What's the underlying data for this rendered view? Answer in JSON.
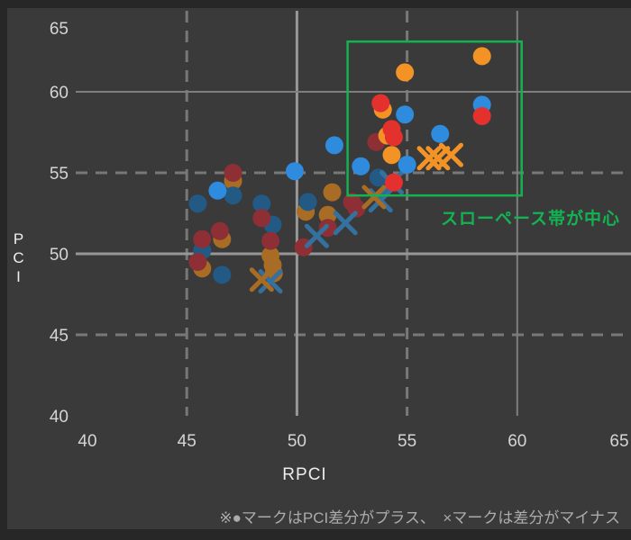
{
  "chart_data": {
    "type": "scatter",
    "title": "",
    "xlabel": "RPCI",
    "ylabel": "PCI",
    "xlim": [
      40,
      65
    ],
    "ylim": [
      40,
      65
    ],
    "xticks": [
      40,
      45,
      50,
      55,
      60,
      65
    ],
    "yticks": [
      40,
      45,
      50,
      55,
      60,
      65
    ],
    "grid": {
      "x_solid": [
        50,
        60
      ],
      "y_solid": [
        50,
        60
      ],
      "x_dashed": [
        45,
        55
      ],
      "y_dashed": [
        45,
        55
      ],
      "solid_color": "#979797",
      "solid_minor_color": "#7e7e7e",
      "dashed_color": "#787878"
    },
    "tick_label_color": "#d5d5d5",
    "background_color": "#3a3a3a",
    "page_color": "#272727",
    "series": [
      {
        "name": "pci-plus-orange-dull",
        "marker": "circle",
        "color": "#a86c24",
        "points": [
          [
            47.1,
            54.5
          ],
          [
            46.6,
            50.9
          ],
          [
            45.7,
            49.1
          ],
          [
            48.8,
            49.9
          ],
          [
            48.9,
            49.3
          ],
          [
            48.95,
            48.8
          ],
          [
            51.6,
            53.8
          ],
          [
            51.4,
            52.4
          ],
          [
            50.4,
            52.6
          ]
        ]
      },
      {
        "name": "pci-plus-blue-dull",
        "marker": "circle",
        "color": "#225a85",
        "points": [
          [
            47.1,
            53.6
          ],
          [
            45.5,
            53.1
          ],
          [
            48.4,
            53.1
          ],
          [
            48.9,
            51.8
          ],
          [
            45.7,
            50.2
          ],
          [
            46.6,
            48.7
          ],
          [
            50.5,
            53.2
          ],
          [
            53.7,
            54.7
          ]
        ]
      },
      {
        "name": "pci-plus-red-dull",
        "marker": "circle",
        "color": "#8e2f36",
        "points": [
          [
            47.1,
            55.0
          ],
          [
            48.4,
            52.2
          ],
          [
            46.5,
            51.4
          ],
          [
            45.7,
            50.9
          ],
          [
            45.5,
            49.5
          ],
          [
            48.8,
            50.8
          ],
          [
            50.3,
            50.4
          ],
          [
            52.5,
            53.2
          ],
          [
            52.7,
            52.8
          ],
          [
            51.4,
            51.6
          ],
          [
            53.6,
            56.9
          ]
        ]
      },
      {
        "name": "pci-minus-blue-x",
        "marker": "x",
        "color": "#34719f",
        "points": [
          [
            48.8,
            48.3
          ],
          [
            52.2,
            51.9
          ],
          [
            50.9,
            51.1
          ],
          [
            54.3,
            54.4
          ],
          [
            53.8,
            53.3
          ]
        ]
      },
      {
        "name": "pci-minus-orange-dull-x",
        "marker": "x",
        "color": "#a86c24",
        "points": [
          [
            48.4,
            48.4
          ],
          [
            53.5,
            53.5
          ]
        ]
      },
      {
        "name": "pci-plus-orange-bright",
        "marker": "circle",
        "color": "#f49325",
        "points": [
          [
            54.9,
            61.2
          ],
          [
            58.4,
            62.2
          ],
          [
            53.9,
            58.9
          ],
          [
            54.1,
            57.3
          ],
          [
            54.3,
            56.1
          ]
        ]
      },
      {
        "name": "pci-plus-blue-bright",
        "marker": "circle",
        "color": "#2e8bdd",
        "points": [
          [
            46.4,
            53.9
          ],
          [
            49.9,
            55.1
          ],
          [
            51.7,
            56.7
          ],
          [
            58.4,
            59.2
          ],
          [
            54.9,
            58.6
          ],
          [
            56.5,
            57.4
          ],
          [
            55.0,
            55.5
          ],
          [
            52.9,
            55.4
          ]
        ]
      },
      {
        "name": "pci-plus-red-bright",
        "marker": "circle",
        "color": "#e5312e",
        "points": [
          [
            53.8,
            59.3
          ],
          [
            58.4,
            58.5
          ],
          [
            54.3,
            57.7
          ],
          [
            54.4,
            57.2
          ],
          [
            54.4,
            54.4
          ]
        ]
      },
      {
        "name": "pci-minus-orange-bright-x",
        "marker": "x",
        "color": "#f49325",
        "points": [
          [
            56.0,
            55.9
          ],
          [
            56.4,
            55.9
          ],
          [
            57.0,
            56.1
          ]
        ]
      }
    ],
    "annotations": {
      "highlight_box": {
        "x0": 52.3,
        "y0": 53.6,
        "x1": 60.2,
        "y1": 63.1,
        "color": "#13b352"
      },
      "label": {
        "text": "スローペース帯が中心",
        "color": "#13b352"
      }
    },
    "caption": "※●マークはPCI差分がプラス、　×マークは差分がマイナス",
    "legend_position": "none"
  }
}
